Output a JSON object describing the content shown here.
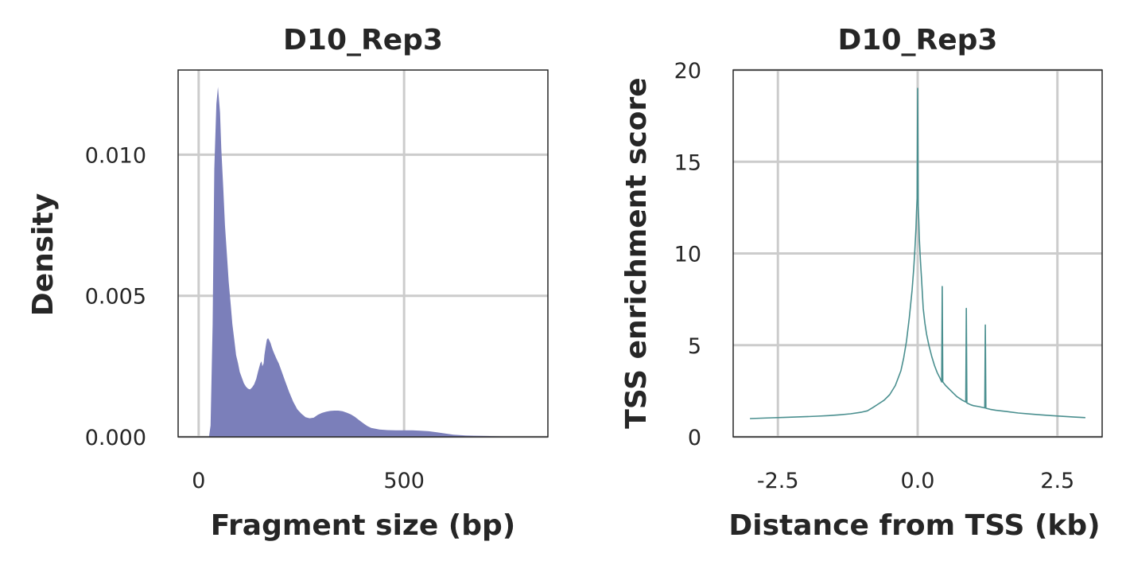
{
  "chart_data": [
    {
      "type": "area",
      "title": "D10_Rep3",
      "xlabel": "Fragment size (bp)",
      "ylabel": "Density",
      "xlim": [
        -50,
        850
      ],
      "ylim": [
        0,
        0.013
      ],
      "xticks": [
        0,
        500
      ],
      "yticks": [
        0.0,
        0.005,
        0.01
      ],
      "ytick_labels": [
        "0.000",
        "0.005",
        "0.010"
      ],
      "grid": true,
      "color": "#7b7fba",
      "x": [
        25,
        29,
        34,
        38,
        43,
        47,
        52,
        55,
        60,
        64,
        69,
        73,
        78,
        82,
        87,
        91,
        96,
        100,
        105,
        110,
        115,
        120,
        125,
        130,
        135,
        140,
        145,
        150,
        153,
        155,
        158,
        160,
        163,
        166,
        169,
        172,
        175,
        178,
        181,
        184,
        187,
        190,
        195,
        200,
        210,
        220,
        230,
        240,
        250,
        260,
        270,
        280,
        290,
        300,
        310,
        320,
        330,
        340,
        350,
        360,
        370,
        380,
        390,
        400,
        410,
        420,
        440,
        460,
        480,
        500,
        520,
        540,
        560,
        580,
        600,
        620,
        650,
        700,
        750,
        800
      ],
      "y": [
        0.0,
        0.0004,
        0.004,
        0.0095,
        0.0118,
        0.0124,
        0.0115,
        0.0102,
        0.0088,
        0.0075,
        0.0064,
        0.0055,
        0.0047,
        0.004,
        0.0034,
        0.0029,
        0.0026,
        0.0023,
        0.0021,
        0.0019,
        0.00178,
        0.00171,
        0.00168,
        0.00175,
        0.00186,
        0.00205,
        0.00235,
        0.0026,
        0.00268,
        0.0025,
        0.0026,
        0.0029,
        0.0032,
        0.00345,
        0.0035,
        0.00342,
        0.00332,
        0.00318,
        0.00305,
        0.00295,
        0.00285,
        0.00275,
        0.0026,
        0.0024,
        0.002,
        0.0016,
        0.00125,
        0.00098,
        0.00082,
        0.0007,
        0.00066,
        0.00068,
        0.00078,
        0.00085,
        0.00089,
        0.00092,
        0.00093,
        0.00093,
        0.00091,
        0.00086,
        0.0008,
        0.00071,
        0.0006,
        0.00049,
        0.00039,
        0.00032,
        0.00026,
        0.00024,
        0.00023,
        0.00023,
        0.00023,
        0.00022,
        0.0002,
        0.00016,
        0.00012,
        8e-05,
        5e-05,
        3e-05,
        1e-05,
        0.0
      ]
    },
    {
      "type": "line",
      "title": "D10_Rep3",
      "xlabel": "Distance from TSS (kb)",
      "ylabel": "TSS enrichment score",
      "xlim": [
        -3.3,
        3.3
      ],
      "ylim": [
        0,
        20
      ],
      "xticks": [
        -2.5,
        0.0,
        2.5
      ],
      "xtick_labels": [
        "-2.5",
        "0.0",
        "2.5"
      ],
      "yticks": [
        0,
        5,
        10,
        15,
        20
      ],
      "ytick_labels": [
        "0",
        "5",
        "10",
        "15",
        "20"
      ],
      "grid": true,
      "color": "#4a8f8f",
      "x": [
        -3.0,
        -2.8,
        -2.6,
        -2.4,
        -2.2,
        -2.0,
        -1.8,
        -1.6,
        -1.4,
        -1.2,
        -1.0,
        -0.9,
        -0.8,
        -0.7,
        -0.6,
        -0.5,
        -0.4,
        -0.3,
        -0.25,
        -0.2,
        -0.15,
        -0.1,
        -0.07,
        -0.05,
        -0.03,
        -0.02,
        -0.01,
        0.0,
        0.01,
        0.02,
        0.03,
        0.05,
        0.07,
        0.1,
        0.13,
        0.16,
        0.2,
        0.25,
        0.3,
        0.35,
        0.4,
        0.43,
        0.44,
        0.45,
        0.5,
        0.6,
        0.7,
        0.8,
        0.86,
        0.87,
        0.88,
        0.95,
        1.0,
        1.1,
        1.2,
        1.21,
        1.22,
        1.3,
        1.4,
        1.6,
        1.8,
        2.0,
        2.2,
        2.4,
        2.6,
        2.8,
        3.0
      ],
      "y": [
        1.0,
        1.02,
        1.04,
        1.06,
        1.08,
        1.1,
        1.13,
        1.16,
        1.2,
        1.26,
        1.35,
        1.42,
        1.6,
        1.8,
        2.0,
        2.3,
        2.8,
        3.6,
        4.3,
        5.2,
        6.5,
        8.0,
        9.2,
        10.2,
        11.4,
        12.3,
        13.0,
        19.0,
        12.6,
        11.8,
        10.8,
        9.6,
        8.6,
        7.0,
        6.2,
        5.6,
        5.0,
        4.4,
        3.9,
        3.5,
        3.2,
        3.0,
        8.2,
        3.0,
        2.8,
        2.5,
        2.2,
        2.0,
        1.9,
        7.0,
        1.85,
        1.75,
        1.7,
        1.65,
        1.58,
        6.1,
        1.56,
        1.5,
        1.45,
        1.38,
        1.3,
        1.25,
        1.2,
        1.16,
        1.12,
        1.08,
        1.05
      ]
    }
  ]
}
